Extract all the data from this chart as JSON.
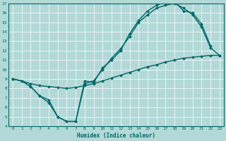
{
  "xlabel": "Humidex (Indice chaleur)",
  "xlim": [
    -0.5,
    23.5
  ],
  "ylim": [
    4,
    17
  ],
  "xticks": [
    0,
    1,
    2,
    3,
    4,
    5,
    6,
    7,
    8,
    9,
    10,
    11,
    12,
    13,
    14,
    15,
    16,
    17,
    18,
    19,
    20,
    21,
    22,
    23
  ],
  "yticks": [
    4,
    5,
    6,
    7,
    8,
    9,
    10,
    11,
    12,
    13,
    14,
    15,
    16,
    17
  ],
  "bg_color": "#b2d8d8",
  "grid_color": "#ffffff",
  "line_color": "#006666",
  "line_straight_x": [
    0,
    1,
    2,
    3,
    4,
    5,
    6,
    7,
    8,
    9,
    10,
    11,
    12,
    13,
    14,
    15,
    16,
    17,
    18,
    19,
    20,
    21,
    22,
    23
  ],
  "line_straight_y": [
    9.0,
    8.8,
    8.5,
    8.3,
    8.2,
    8.1,
    8.0,
    8.1,
    8.3,
    8.5,
    8.8,
    9.1,
    9.4,
    9.7,
    10.0,
    10.3,
    10.5,
    10.8,
    11.0,
    11.2,
    11.3,
    11.4,
    11.5,
    11.5
  ],
  "line_wave_x": [
    0,
    1,
    2,
    3,
    4,
    5,
    6,
    7,
    8,
    9,
    10,
    11,
    12,
    13,
    14,
    15,
    16,
    17,
    18,
    19,
    20,
    21,
    22
  ],
  "line_wave_y": [
    9.0,
    8.8,
    8.2,
    7.2,
    6.8,
    5.0,
    4.5,
    4.5,
    8.8,
    8.6,
    10.2,
    11.0,
    12.0,
    13.8,
    15.2,
    16.2,
    16.8,
    17.2,
    17.2,
    16.2,
    16.0,
    14.8,
    12.5
  ],
  "line3_x": [
    0,
    1,
    2,
    3,
    4,
    5,
    6,
    7,
    8,
    9,
    10,
    11,
    12,
    13,
    14,
    15,
    16,
    17,
    18,
    19,
    20,
    21,
    22,
    23
  ],
  "line3_y": [
    9.0,
    8.8,
    8.2,
    7.2,
    6.5,
    5.0,
    4.5,
    4.5,
    8.5,
    8.8,
    10.0,
    11.2,
    12.2,
    13.5,
    15.0,
    15.8,
    16.5,
    16.8,
    17.0,
    16.5,
    15.8,
    14.5,
    12.3,
    11.5
  ],
  "line_width": 1.0,
  "marker": "D",
  "marker_size": 2.0
}
